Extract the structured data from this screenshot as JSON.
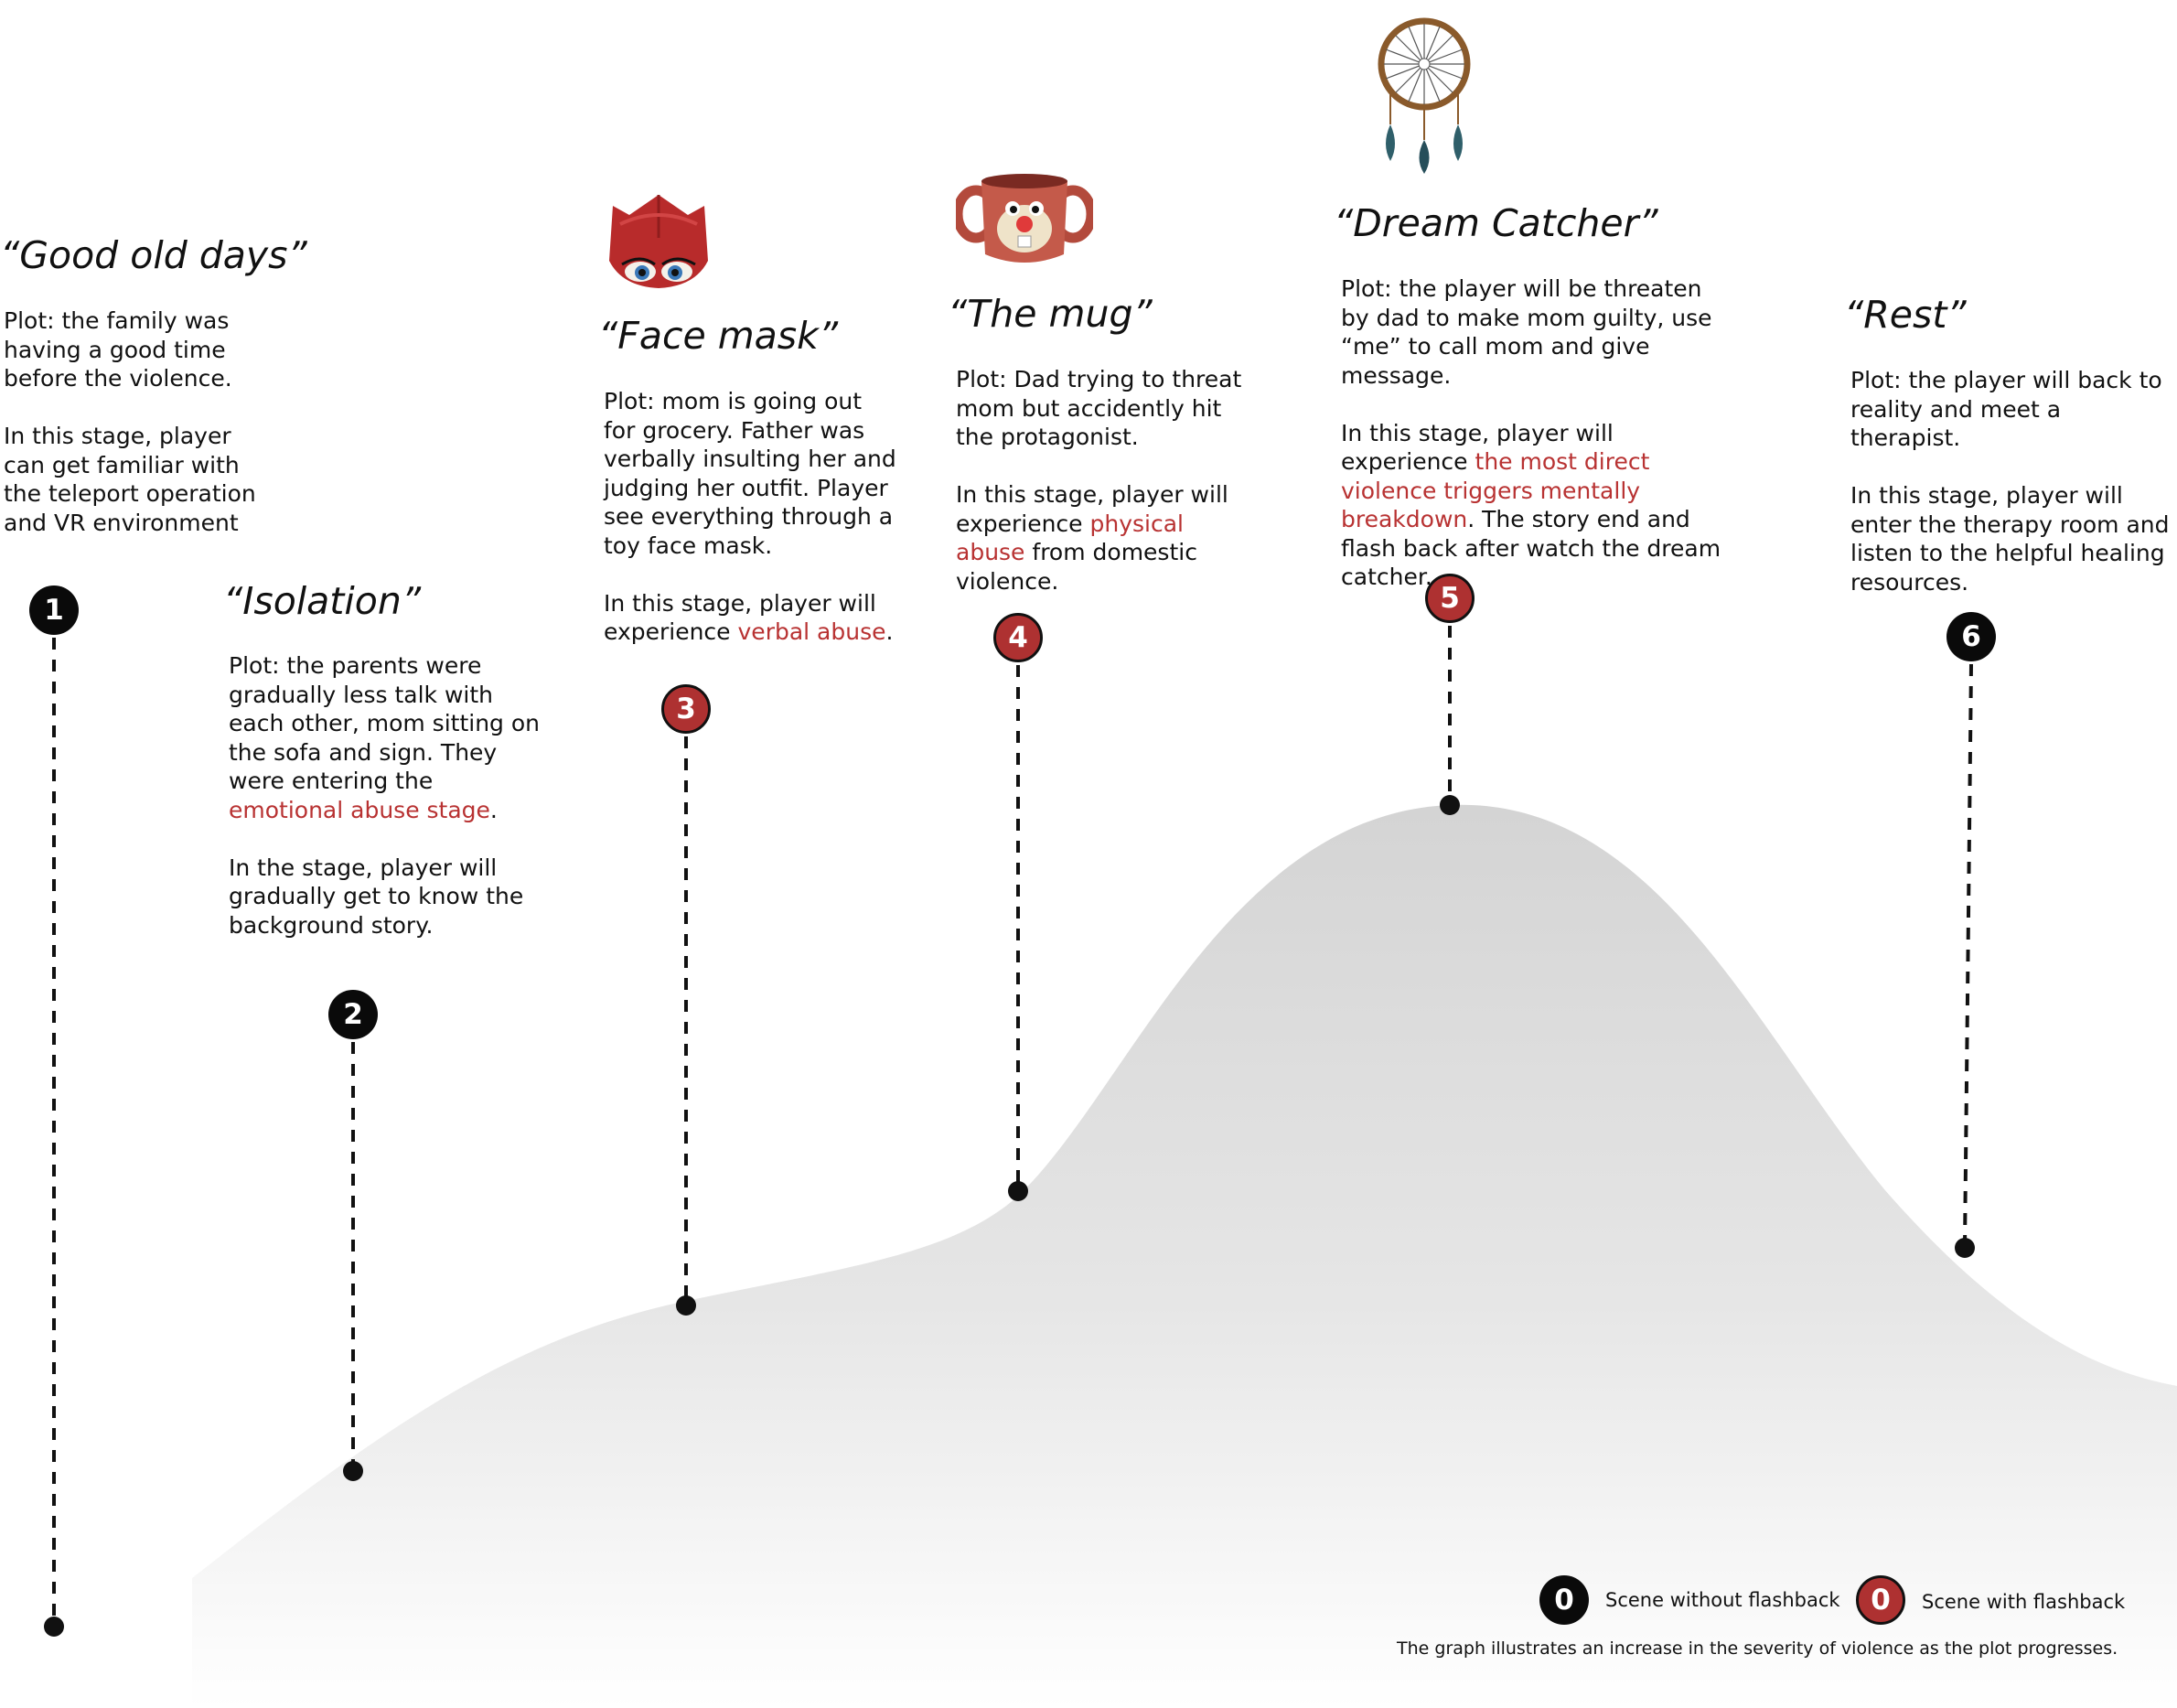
{
  "stages": [
    {
      "number": "1",
      "title": "“Good old days”",
      "flashback": false,
      "paragraphs": [
        [
          {
            "t": "Plot: the family was having a good time before the violence."
          }
        ],
        [
          {
            "t": "In this stage, player can get familiar with the teleport operation and VR environment"
          }
        ]
      ]
    },
    {
      "number": "2",
      "title": "“Isolation”",
      "flashback": false,
      "paragraphs": [
        [
          {
            "t": "Plot: the parents were gradually less talk with each other, mom sitting on the sofa and sign. They were entering the "
          },
          {
            "t": "emotional abuse stage",
            "hl": true
          },
          {
            "t": "."
          }
        ],
        [
          {
            "t": "In the stage, player will gradually get to know the background story."
          }
        ]
      ]
    },
    {
      "number": "3",
      "title": "“Face mask”",
      "flashback": true,
      "icon": "face-mask-icon",
      "paragraphs": [
        [
          {
            "t": "Plot: mom is going out for grocery. Father was verbally insulting her and judging her outfit. Player see everything through a toy face mask."
          }
        ],
        [
          {
            "t": "In this stage, player will experience "
          },
          {
            "t": "verbal abuse",
            "hl": true
          },
          {
            "t": "."
          }
        ]
      ]
    },
    {
      "number": "4",
      "title": "“The mug”",
      "flashback": true,
      "icon": "mug-icon",
      "paragraphs": [
        [
          {
            "t": "Plot: Dad trying to threat mom but accidently hit the protagonist."
          }
        ],
        [
          {
            "t": "In this stage, player will experience "
          },
          {
            "t": "physical abuse",
            "hl": true
          },
          {
            "t": " from domestic violence."
          }
        ]
      ]
    },
    {
      "number": "5",
      "title": "“Dream Catcher”",
      "flashback": true,
      "icon": "dream-catcher-icon",
      "paragraphs": [
        [
          {
            "t": "Plot: the player will be threaten by dad to make mom guilty, use “me” to call mom and give message."
          }
        ],
        [
          {
            "t": "In this stage, player will experience "
          },
          {
            "t": "the most direct violence triggers mentally breakdown",
            "hl": true
          },
          {
            "t": ". The story end and flash back after watch the dream catcher."
          }
        ]
      ]
    },
    {
      "number": "6",
      "title": "“Rest”",
      "flashback": false,
      "paragraphs": [
        [
          {
            "t": "Plot: the player will back to reality and meet a therapist."
          }
        ],
        [
          {
            "t": "In this stage, player will enter the therapy room and listen to the helpful healing resources."
          }
        ]
      ]
    }
  ],
  "legend": {
    "without_flashback": {
      "symbol": "0",
      "label": "Scene without flashback"
    },
    "with_flashback": {
      "symbol": "0",
      "label": "Scene with flashback"
    }
  },
  "caption": "The graph illustrates an increase in the severity of violence as the plot progresses.",
  "colors": {
    "dark": "#0a0a0a",
    "red": "#ae3131",
    "highlight": "#b83232",
    "curve_top": "#d4d4d4",
    "curve_bottom": "#ffffff"
  }
}
